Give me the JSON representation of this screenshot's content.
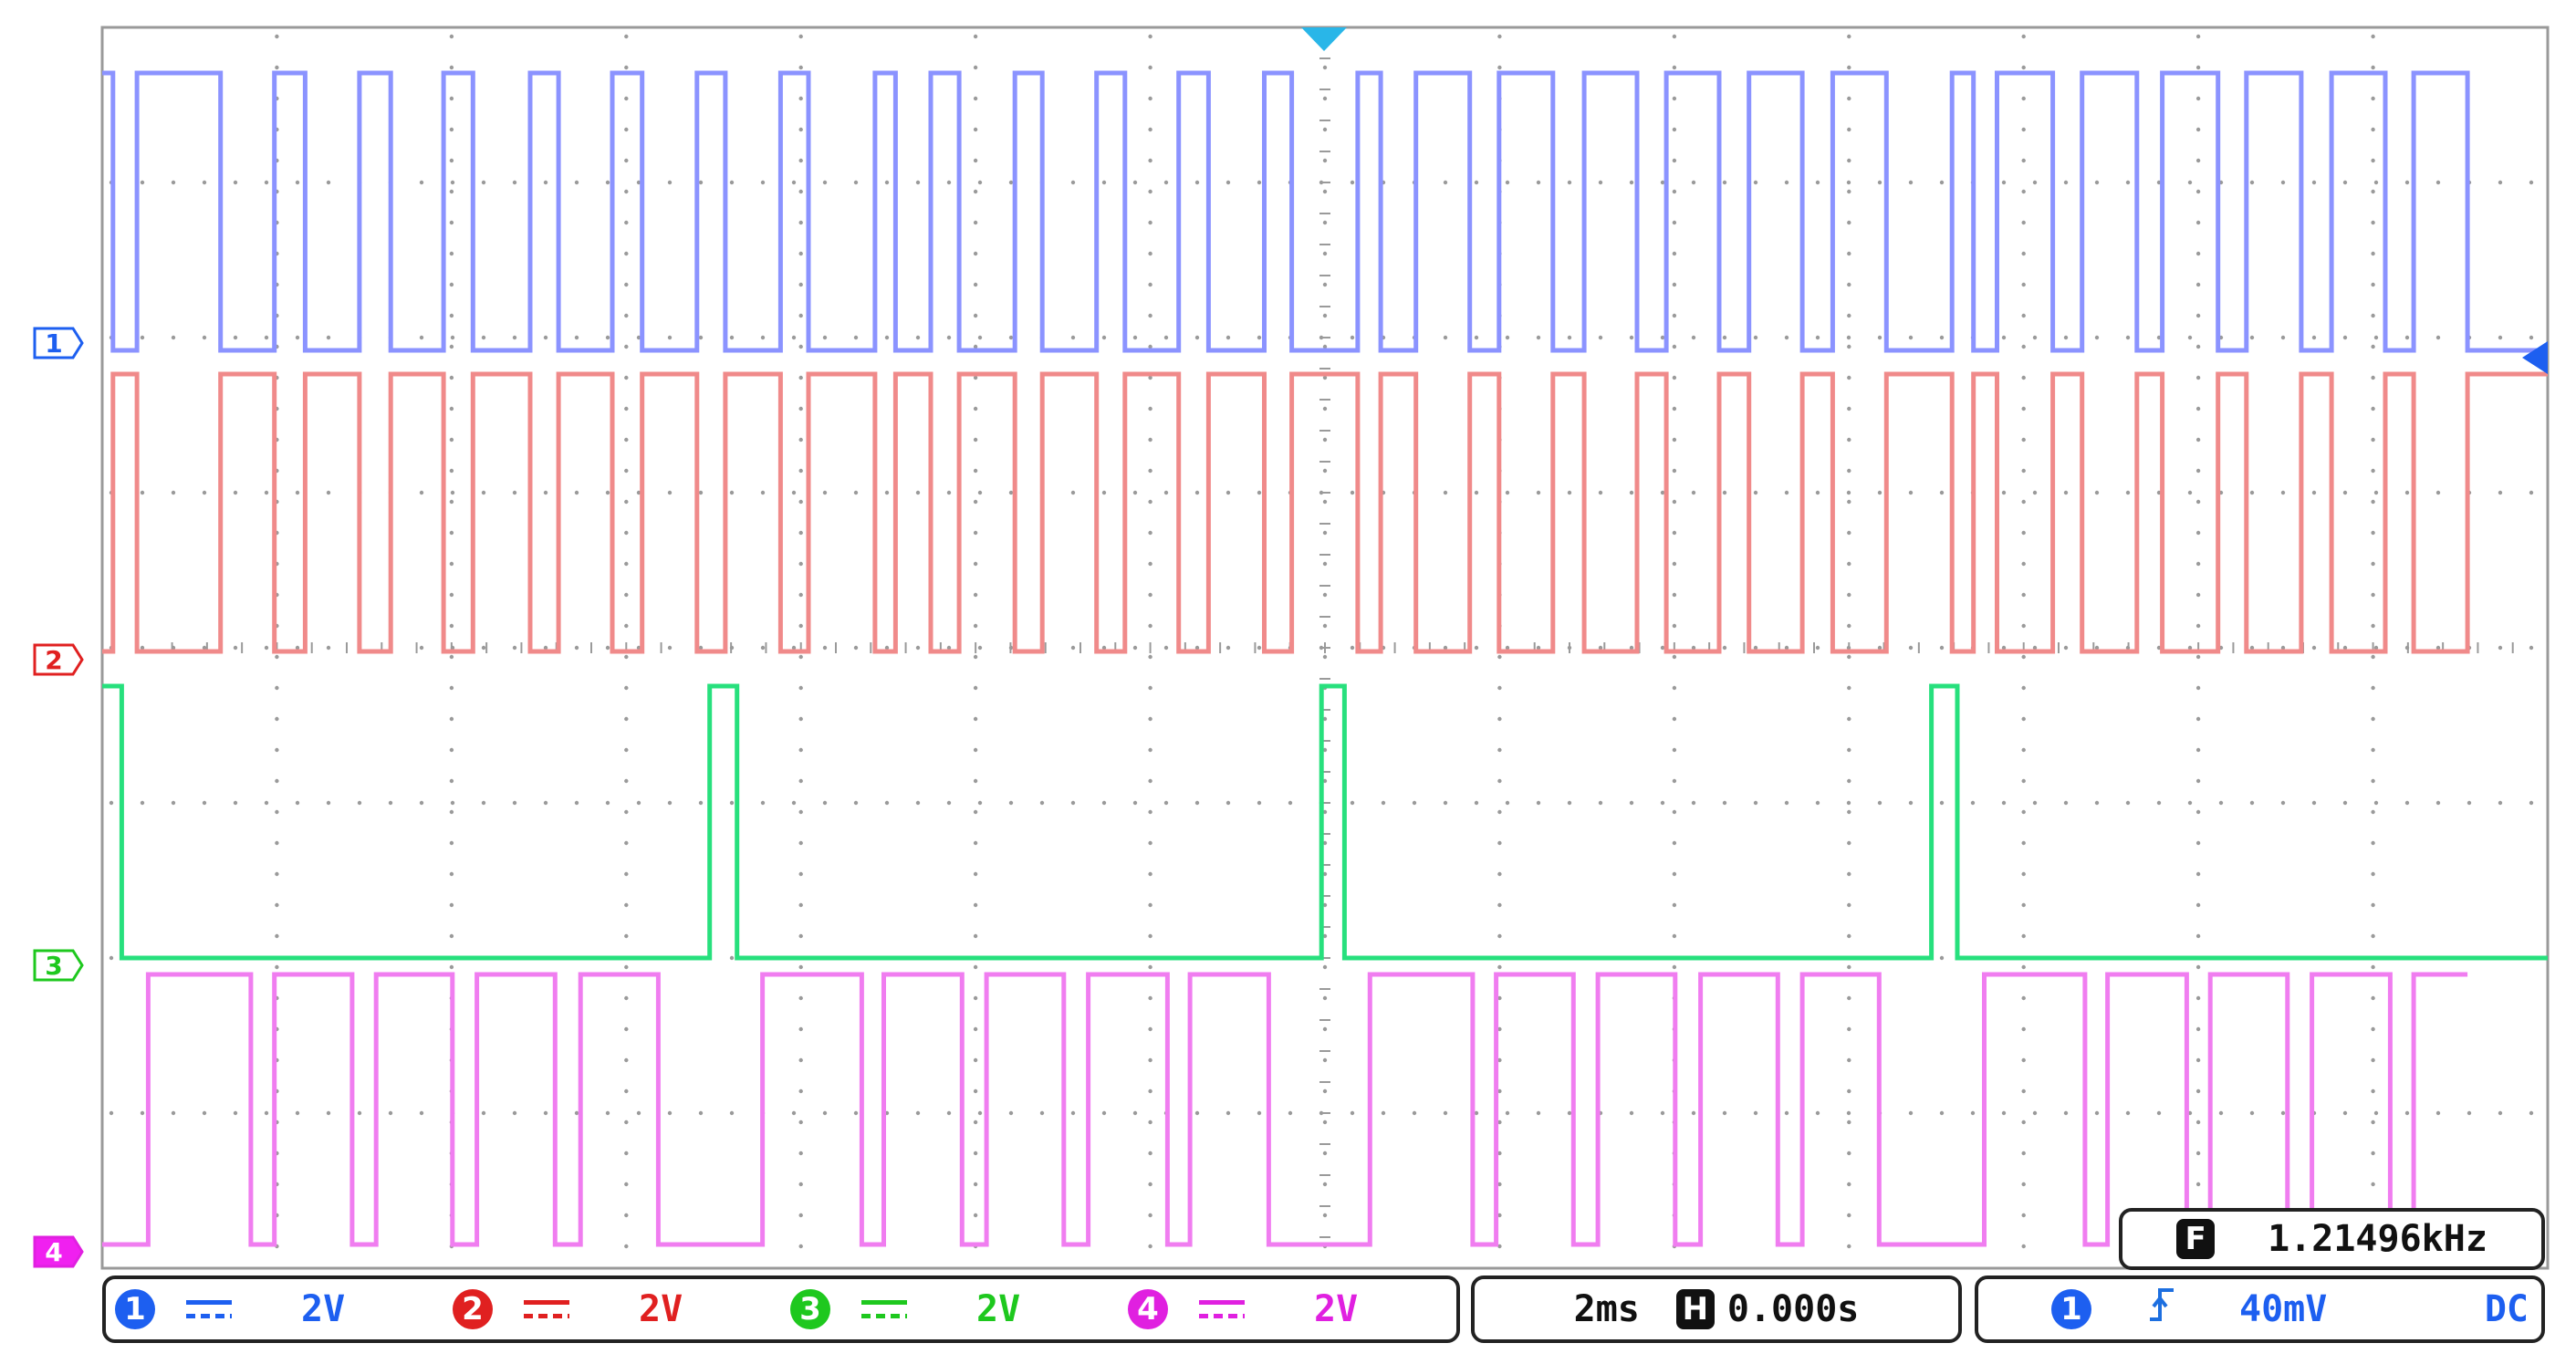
{
  "traces": [
    {
      "id": 1,
      "label": "1",
      "color": "#8b93ff",
      "marker_color": "#1d5ff0",
      "scale": "2V",
      "segments": [
        [
          0,
          1
        ],
        [
          0.022,
          1
        ],
        [
          0.022,
          0
        ],
        [
          0.071,
          0
        ],
        [
          0.071,
          1
        ],
        [
          0.242,
          1
        ],
        [
          0.242,
          0
        ],
        [
          0.352,
          0
        ],
        [
          0.352,
          1
        ],
        [
          0.415,
          1
        ],
        [
          0.415,
          0
        ],
        [
          0.526,
          0
        ],
        [
          0.526,
          1
        ],
        [
          0.59,
          1
        ],
        [
          0.59,
          0
        ],
        [
          0.698,
          0
        ],
        [
          0.698,
          1
        ],
        [
          0.758,
          1
        ],
        [
          0.758,
          0
        ],
        [
          0.875,
          0
        ],
        [
          0.875,
          1
        ],
        [
          0.933,
          1
        ],
        [
          0.933,
          0
        ],
        [
          1.043,
          0
        ],
        [
          1.043,
          1
        ],
        [
          1.104,
          1
        ],
        [
          1.104,
          0
        ],
        [
          1.216,
          0
        ],
        [
          1.216,
          1
        ],
        [
          1.274,
          1
        ],
        [
          1.274,
          0
        ],
        [
          1.387,
          0
        ],
        [
          1.387,
          1
        ],
        [
          1.444,
          1
        ],
        [
          1.444,
          0
        ],
        [
          1.58,
          0
        ],
        [
          1.58,
          1
        ],
        [
          1.622,
          1
        ],
        [
          1.622,
          0
        ],
        [
          1.694,
          0
        ],
        [
          1.694,
          1
        ],
        [
          1.752,
          1
        ],
        [
          1.752,
          0
        ],
        [
          1.866,
          0
        ],
        [
          1.866,
          1
        ],
        [
          1.922,
          1
        ],
        [
          1.922,
          0
        ],
        [
          2.033,
          0
        ],
        [
          2.033,
          1
        ],
        [
          2.091,
          1
        ],
        [
          2.091,
          0
        ],
        [
          2.201,
          0
        ],
        [
          2.201,
          1
        ],
        [
          2.262,
          1
        ],
        [
          2.262,
          0
        ],
        [
          2.376,
          0
        ],
        [
          2.376,
          1
        ],
        [
          2.432,
          1
        ],
        [
          2.432,
          0
        ],
        [
          2.567,
          0
        ],
        [
          2.567,
          1
        ],
        [
          2.614,
          1
        ],
        [
          2.614,
          0
        ],
        [
          2.686,
          0
        ],
        [
          2.686,
          1
        ],
        [
          2.796,
          1
        ],
        [
          2.796,
          0
        ],
        [
          2.856,
          0
        ],
        [
          2.856,
          1
        ],
        [
          2.966,
          1
        ],
        [
          2.966,
          0
        ],
        [
          3.03,
          0
        ],
        [
          3.03,
          1
        ],
        [
          3.138,
          1
        ],
        [
          3.138,
          0
        ],
        [
          3.198,
          0
        ],
        [
          3.198,
          1
        ],
        [
          3.306,
          1
        ],
        [
          3.306,
          0
        ],
        [
          3.367,
          0
        ],
        [
          3.367,
          1
        ],
        [
          3.476,
          1
        ],
        [
          3.476,
          0
        ],
        [
          3.538,
          0
        ],
        [
          3.538,
          1
        ],
        [
          3.648,
          1
        ],
        [
          3.648,
          0
        ],
        [
          3.782,
          0
        ],
        [
          3.782,
          1
        ],
        [
          3.826,
          1
        ],
        [
          3.826,
          0
        ],
        [
          3.874,
          0
        ],
        [
          3.874,
          1
        ],
        [
          3.988,
          1
        ],
        [
          3.988,
          0
        ],
        [
          4.048,
          0
        ],
        [
          4.048,
          1
        ],
        [
          4.16,
          1
        ],
        [
          4.16,
          0
        ],
        [
          4.212,
          0
        ],
        [
          4.212,
          1
        ],
        [
          4.326,
          1
        ],
        [
          4.326,
          0
        ],
        [
          4.384,
          0
        ],
        [
          4.384,
          1
        ],
        [
          4.496,
          1
        ],
        [
          4.496,
          0
        ],
        [
          4.558,
          0
        ],
        [
          4.558,
          1
        ],
        [
          4.668,
          1
        ],
        [
          4.668,
          0
        ],
        [
          4.726,
          0
        ],
        [
          4.726,
          1
        ],
        [
          4.836,
          1
        ],
        [
          4.836,
          0
        ],
        [
          5.0,
          0
        ]
      ]
    },
    {
      "id": 2,
      "label": "2",
      "color": "#f08a8a",
      "marker_color": "#e02020",
      "scale": "2V",
      "segments": [
        [
          0,
          0
        ],
        [
          0.022,
          0
        ],
        [
          0.022,
          1
        ],
        [
          0.071,
          1
        ],
        [
          0.071,
          0
        ],
        [
          0.242,
          0
        ],
        [
          0.242,
          1
        ],
        [
          0.352,
          1
        ],
        [
          0.352,
          0
        ],
        [
          0.415,
          0
        ],
        [
          0.415,
          1
        ],
        [
          0.526,
          1
        ],
        [
          0.526,
          0
        ],
        [
          0.59,
          0
        ],
        [
          0.59,
          1
        ],
        [
          0.698,
          1
        ],
        [
          0.698,
          0
        ],
        [
          0.758,
          0
        ],
        [
          0.758,
          1
        ],
        [
          0.875,
          1
        ],
        [
          0.875,
          0
        ],
        [
          0.933,
          0
        ],
        [
          0.933,
          1
        ],
        [
          1.043,
          1
        ],
        [
          1.043,
          0
        ],
        [
          1.104,
          0
        ],
        [
          1.104,
          1
        ],
        [
          1.216,
          1
        ],
        [
          1.216,
          0
        ],
        [
          1.274,
          0
        ],
        [
          1.274,
          1
        ],
        [
          1.387,
          1
        ],
        [
          1.387,
          0
        ],
        [
          1.444,
          0
        ],
        [
          1.444,
          1
        ],
        [
          1.58,
          1
        ],
        [
          1.58,
          0
        ],
        [
          1.622,
          0
        ],
        [
          1.622,
          1
        ],
        [
          1.694,
          1
        ],
        [
          1.694,
          0
        ],
        [
          1.752,
          0
        ],
        [
          1.752,
          1
        ],
        [
          1.866,
          1
        ],
        [
          1.866,
          0
        ],
        [
          1.922,
          0
        ],
        [
          1.922,
          1
        ],
        [
          2.033,
          1
        ],
        [
          2.033,
          0
        ],
        [
          2.091,
          0
        ],
        [
          2.091,
          1
        ],
        [
          2.201,
          1
        ],
        [
          2.201,
          0
        ],
        [
          2.262,
          0
        ],
        [
          2.262,
          1
        ],
        [
          2.376,
          1
        ],
        [
          2.376,
          0
        ],
        [
          2.432,
          0
        ],
        [
          2.432,
          1
        ],
        [
          2.567,
          1
        ],
        [
          2.567,
          0
        ],
        [
          2.614,
          0
        ],
        [
          2.614,
          1
        ],
        [
          2.686,
          1
        ],
        [
          2.686,
          0
        ],
        [
          2.796,
          0
        ],
        [
          2.796,
          1
        ],
        [
          2.856,
          1
        ],
        [
          2.856,
          0
        ],
        [
          2.966,
          0
        ],
        [
          2.966,
          1
        ],
        [
          3.03,
          1
        ],
        [
          3.03,
          0
        ],
        [
          3.138,
          0
        ],
        [
          3.138,
          1
        ],
        [
          3.198,
          1
        ],
        [
          3.198,
          0
        ],
        [
          3.306,
          0
        ],
        [
          3.306,
          1
        ],
        [
          3.367,
          1
        ],
        [
          3.367,
          0
        ],
        [
          3.476,
          0
        ],
        [
          3.476,
          1
        ],
        [
          3.538,
          1
        ],
        [
          3.538,
          0
        ],
        [
          3.648,
          0
        ],
        [
          3.648,
          1
        ],
        [
          3.782,
          1
        ],
        [
          3.782,
          0
        ],
        [
          3.826,
          0
        ],
        [
          3.826,
          1
        ],
        [
          3.874,
          1
        ],
        [
          3.874,
          0
        ],
        [
          3.988,
          0
        ],
        [
          3.988,
          1
        ],
        [
          4.048,
          1
        ],
        [
          4.048,
          0
        ],
        [
          4.16,
          0
        ],
        [
          4.16,
          1
        ],
        [
          4.212,
          1
        ],
        [
          4.212,
          0
        ],
        [
          4.326,
          0
        ],
        [
          4.326,
          1
        ],
        [
          4.384,
          1
        ],
        [
          4.384,
          0
        ],
        [
          4.496,
          0
        ],
        [
          4.496,
          1
        ],
        [
          4.558,
          1
        ],
        [
          4.558,
          0
        ],
        [
          4.668,
          0
        ],
        [
          4.668,
          1
        ],
        [
          4.726,
          1
        ],
        [
          4.726,
          0
        ],
        [
          4.836,
          0
        ],
        [
          4.836,
          1
        ],
        [
          5.0,
          1
        ]
      ]
    },
    {
      "id": 3,
      "label": "3",
      "color": "#27e07d",
      "marker_color": "#1ec81e",
      "scale": "2V",
      "segments": [
        [
          0,
          1
        ],
        [
          0.04,
          1
        ],
        [
          0.04,
          0
        ],
        [
          1.242,
          0
        ],
        [
          1.242,
          1
        ],
        [
          1.298,
          1
        ],
        [
          1.298,
          0
        ],
        [
          2.493,
          0
        ],
        [
          2.493,
          1
        ],
        [
          2.54,
          1
        ],
        [
          2.54,
          0
        ],
        [
          3.74,
          0
        ],
        [
          3.74,
          1
        ],
        [
          3.793,
          1
        ],
        [
          3.793,
          0
        ],
        [
          5.0,
          0
        ]
      ]
    },
    {
      "id": 4,
      "label": "4",
      "color": "#f07df0",
      "marker_color": "#e020e0",
      "scale": "2V",
      "segments": [
        [
          0,
          0
        ],
        [
          0.094,
          0
        ],
        [
          0.094,
          1
        ],
        [
          0.304,
          1
        ],
        [
          0.304,
          0
        ],
        [
          0.352,
          0
        ],
        [
          0.352,
          1
        ],
        [
          0.511,
          1
        ],
        [
          0.511,
          0
        ],
        [
          0.56,
          0
        ],
        [
          0.56,
          1
        ],
        [
          0.716,
          1
        ],
        [
          0.716,
          0
        ],
        [
          0.766,
          0
        ],
        [
          0.766,
          1
        ],
        [
          0.926,
          1
        ],
        [
          0.926,
          0
        ],
        [
          0.978,
          0
        ],
        [
          0.978,
          1
        ],
        [
          1.137,
          1
        ],
        [
          1.137,
          0
        ],
        [
          1.35,
          0
        ],
        [
          1.35,
          1
        ],
        [
          1.553,
          1
        ],
        [
          1.553,
          0
        ],
        [
          1.598,
          0
        ],
        [
          1.598,
          1
        ],
        [
          1.758,
          1
        ],
        [
          1.758,
          0
        ],
        [
          1.808,
          0
        ],
        [
          1.808,
          1
        ],
        [
          1.966,
          1
        ],
        [
          1.966,
          0
        ],
        [
          2.016,
          0
        ],
        [
          2.016,
          1
        ],
        [
          2.178,
          1
        ],
        [
          2.178,
          0
        ],
        [
          2.224,
          0
        ],
        [
          2.224,
          1
        ],
        [
          2.385,
          1
        ],
        [
          2.385,
          0
        ],
        [
          2.592,
          0
        ],
        [
          2.592,
          1
        ],
        [
          2.802,
          1
        ],
        [
          2.802,
          0
        ],
        [
          2.85,
          0
        ],
        [
          2.85,
          1
        ],
        [
          3.008,
          1
        ],
        [
          3.008,
          0
        ],
        [
          3.058,
          0
        ],
        [
          3.058,
          1
        ],
        [
          3.216,
          1
        ],
        [
          3.216,
          0
        ],
        [
          3.268,
          0
        ],
        [
          3.268,
          1
        ],
        [
          3.426,
          1
        ],
        [
          3.426,
          0
        ],
        [
          3.476,
          0
        ],
        [
          3.476,
          1
        ],
        [
          3.633,
          1
        ],
        [
          3.633,
          0
        ],
        [
          3.848,
          0
        ],
        [
          3.848,
          1
        ],
        [
          4.054,
          1
        ],
        [
          4.054,
          0
        ],
        [
          4.1,
          0
        ],
        [
          4.1,
          1
        ],
        [
          4.262,
          1
        ],
        [
          4.262,
          0
        ],
        [
          4.31,
          0
        ],
        [
          4.31,
          1
        ],
        [
          4.468,
          1
        ],
        [
          4.468,
          0
        ],
        [
          4.518,
          0
        ],
        [
          4.518,
          1
        ],
        [
          4.678,
          1
        ],
        [
          4.678,
          0
        ],
        [
          4.726,
          0
        ],
        [
          4.726,
          1
        ],
        [
          4.836,
          1
        ]
      ]
    }
  ],
  "freq_readout": {
    "icon": "F",
    "value": "1.21496kHz"
  },
  "timebase": {
    "div": "2ms",
    "h_icon": "H",
    "position": "0.000s"
  },
  "trigger": {
    "channel": "1",
    "edge_icon": "rising-edge",
    "level": "40mV",
    "coupling": "DC"
  },
  "colors": {
    "grid_border": "#999999",
    "grid_dot": "#9a9a9a",
    "trigger_marker": "#29b6e8",
    "status_text": "#111111"
  }
}
